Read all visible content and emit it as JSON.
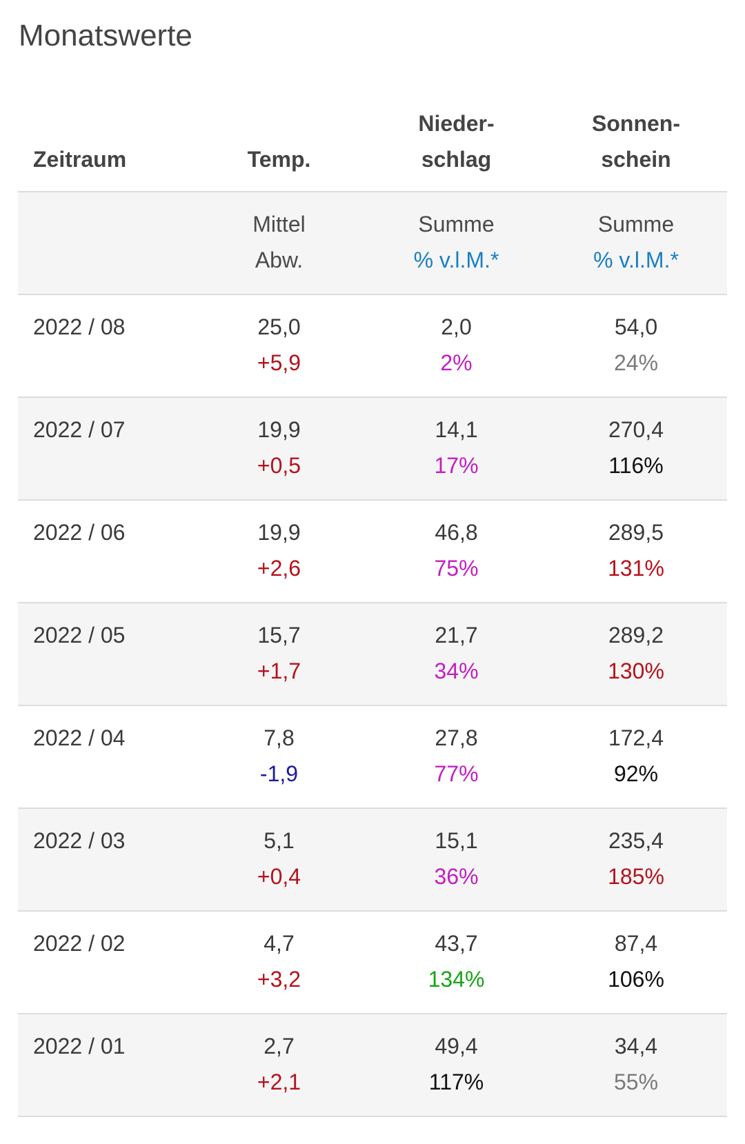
{
  "title": "Monatswerte",
  "headers": {
    "zeitraum": "Zeitraum",
    "temp": "Temp.",
    "nieder_1": "Nieder-",
    "nieder_2": "schlag",
    "sonnen_1": "Sonnen-",
    "sonnen_2": "schein"
  },
  "units": {
    "temp_1": "Mittel",
    "temp_2": "Abw.",
    "nieder_1": "Summe",
    "nieder_2": "% v.l.M.*",
    "sonnen_1": "Summe",
    "sonnen_2": "% v.l.M.*"
  },
  "colors": {
    "warm_deviation": "#b5121b",
    "cold_deviation": "#1c1c9a",
    "dry": "#c21fc2",
    "wet": "#17a517",
    "normal": "#111111",
    "low_sun": "#7a7a7a",
    "link": "#1a7fc2"
  },
  "rows": [
    {
      "period": "2022 / 08",
      "temp_mean": "25,0",
      "temp_dev": "+5,9",
      "precip_sum": "2,0",
      "precip_pct": "2%",
      "sun_sum": "54,0",
      "sun_pct": "24%"
    },
    {
      "period": "2022 / 07",
      "temp_mean": "19,9",
      "temp_dev": "+0,5",
      "precip_sum": "14,1",
      "precip_pct": "17%",
      "sun_sum": "270,4",
      "sun_pct": "116%"
    },
    {
      "period": "2022 / 06",
      "temp_mean": "19,9",
      "temp_dev": "+2,6",
      "precip_sum": "46,8",
      "precip_pct": "75%",
      "sun_sum": "289,5",
      "sun_pct": "131%"
    },
    {
      "period": "2022 / 05",
      "temp_mean": "15,7",
      "temp_dev": "+1,7",
      "precip_sum": "21,7",
      "precip_pct": "34%",
      "sun_sum": "289,2",
      "sun_pct": "130%"
    },
    {
      "period": "2022 / 04",
      "temp_mean": "7,8",
      "temp_dev": "-1,9",
      "precip_sum": "27,8",
      "precip_pct": "77%",
      "sun_sum": "172,4",
      "sun_pct": "92%"
    },
    {
      "period": "2022 / 03",
      "temp_mean": "5,1",
      "temp_dev": "+0,4",
      "precip_sum": "15,1",
      "precip_pct": "36%",
      "sun_sum": "235,4",
      "sun_pct": "185%"
    },
    {
      "period": "2022 / 02",
      "temp_mean": "4,7",
      "temp_dev": "+3,2",
      "precip_sum": "43,7",
      "precip_pct": "134%",
      "sun_sum": "87,4",
      "sun_pct": "106%"
    },
    {
      "period": "2022 / 01",
      "temp_mean": "2,7",
      "temp_dev": "+2,1",
      "precip_sum": "49,4",
      "precip_pct": "117%",
      "sun_sum": "34,4",
      "sun_pct": "55%"
    }
  ]
}
